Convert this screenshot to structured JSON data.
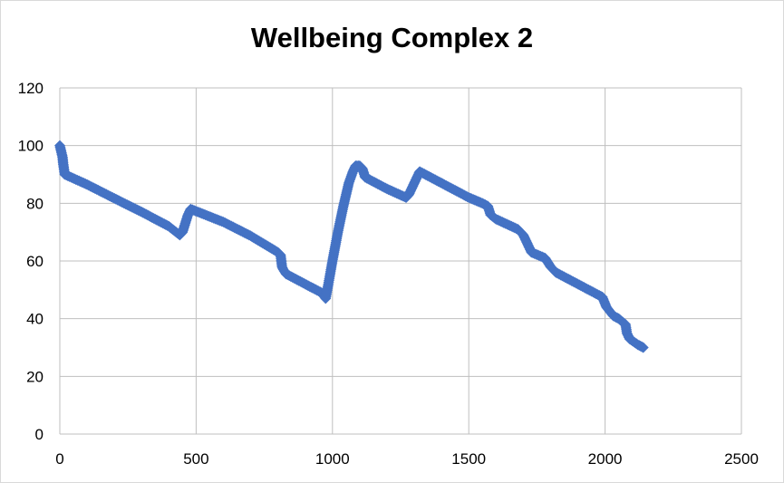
{
  "chart_data": {
    "type": "scatter",
    "title": "Wellbeing Complex 2",
    "xlabel": "",
    "ylabel": "",
    "xlim": [
      0,
      2500
    ],
    "ylim": [
      0,
      120
    ],
    "xticks": [
      0,
      500,
      1000,
      1500,
      2000,
      2500
    ],
    "yticks": [
      0,
      20,
      40,
      60,
      80,
      100,
      120
    ],
    "grid": true,
    "legend": "none",
    "marker": "diamond",
    "color": "#4472c4",
    "series": [
      {
        "points": [
          [
            0,
            100
          ],
          [
            5,
            98
          ],
          [
            10,
            96
          ],
          [
            12,
            94
          ],
          [
            15,
            92
          ],
          [
            18,
            90
          ],
          [
            100,
            86.5
          ],
          [
            200,
            81.7
          ],
          [
            300,
            77
          ],
          [
            400,
            72
          ],
          [
            440,
            69
          ],
          [
            450,
            70
          ],
          [
            460,
            73
          ],
          [
            470,
            76
          ],
          [
            480,
            78
          ],
          [
            600,
            73.5
          ],
          [
            700,
            68.7
          ],
          [
            800,
            63
          ],
          [
            810,
            62
          ],
          [
            815,
            58
          ],
          [
            820,
            57
          ],
          [
            830,
            55.5
          ],
          [
            900,
            52
          ],
          [
            960,
            49
          ],
          [
            975,
            47
          ],
          [
            985,
            52
          ],
          [
            1000,
            60
          ],
          [
            1020,
            70
          ],
          [
            1040,
            79
          ],
          [
            1060,
            87
          ],
          [
            1075,
            91
          ],
          [
            1085,
            93
          ],
          [
            1100,
            93
          ],
          [
            1110,
            92
          ],
          [
            1120,
            89
          ],
          [
            1200,
            85
          ],
          [
            1270,
            82
          ],
          [
            1280,
            83
          ],
          [
            1300,
            87
          ],
          [
            1320,
            91
          ],
          [
            1400,
            87
          ],
          [
            1500,
            82
          ],
          [
            1550,
            80
          ],
          [
            1570,
            79
          ],
          [
            1580,
            76
          ],
          [
            1600,
            74.5
          ],
          [
            1680,
            71
          ],
          [
            1700,
            69
          ],
          [
            1715,
            66
          ],
          [
            1730,
            63
          ],
          [
            1780,
            61
          ],
          [
            1800,
            58
          ],
          [
            1820,
            56
          ],
          [
            1900,
            52
          ],
          [
            1990,
            47.5
          ],
          [
            2005,
            44
          ],
          [
            2030,
            41
          ],
          [
            2050,
            40
          ],
          [
            2075,
            38
          ],
          [
            2080,
            35
          ],
          [
            2090,
            33
          ],
          [
            2120,
            31
          ],
          [
            2140,
            30
          ]
        ]
      }
    ]
  }
}
